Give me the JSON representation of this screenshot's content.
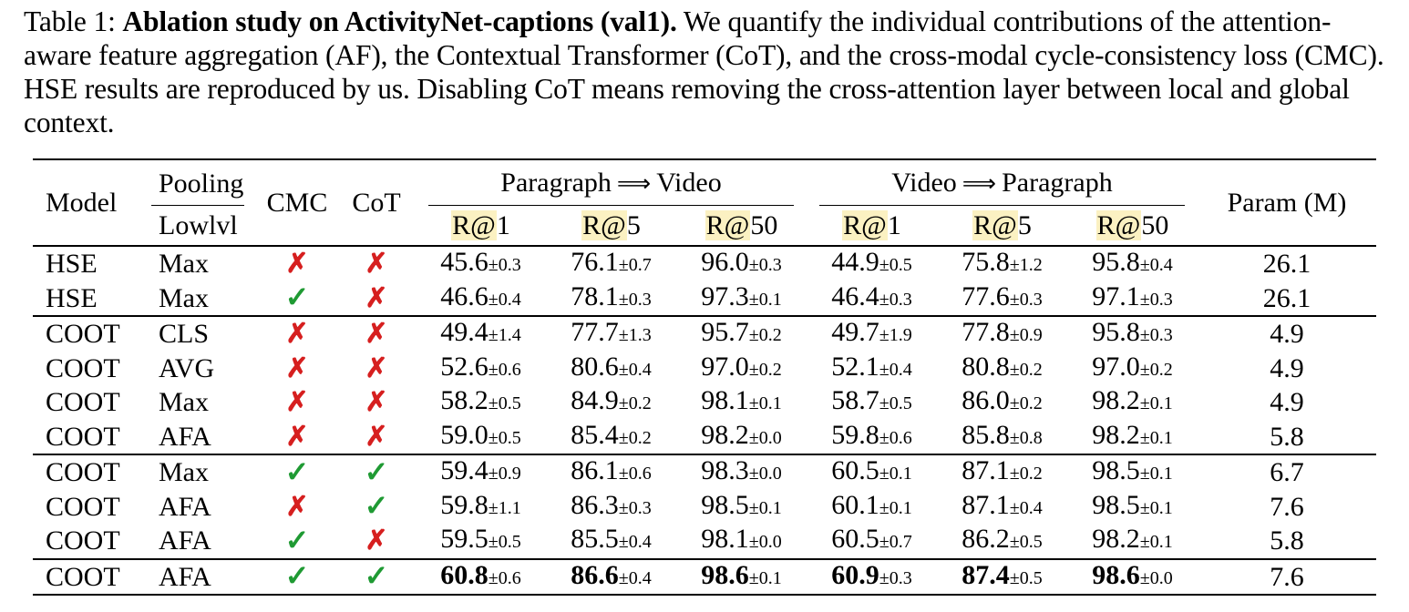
{
  "caption": {
    "label": "Table 1:",
    "title": "Ablation study on ActivityNet-captions (val1).",
    "text": "We quantify the individual contributions of the attention-aware feature aggregation (AF), the Contextual Transformer (CoT), and the cross-modal cycle-consistency loss (CMC). HSE results are reproduced by us. Disabling CoT means removing the cross-attention layer between local and global context."
  },
  "header": {
    "model": "Model",
    "pooling": "Pooling",
    "lowlvl": "Lowlvl",
    "cmc": "CMC",
    "cot": "CoT",
    "p2v_from": "Paragraph",
    "p2v_to": "Video",
    "v2p_from": "Video",
    "v2p_to": "Paragraph",
    "arrow": "⟹",
    "param": "Param (M)",
    "metrics": [
      {
        "prefix": "R@",
        "k": "1"
      },
      {
        "prefix": "R@",
        "k": "5"
      },
      {
        "prefix": "R@",
        "k": "50"
      },
      {
        "prefix": "R@",
        "k": "1"
      },
      {
        "prefix": "R@",
        "k": "5"
      },
      {
        "prefix": "R@",
        "k": "50"
      }
    ]
  },
  "marks": {
    "yes": "✓",
    "no": "✗"
  },
  "rows": [
    {
      "model": "HSE",
      "pooling": "Max",
      "cmc": false,
      "cot": false,
      "sep": false,
      "metrics": [
        {
          "v": "45.6",
          "s": "±0.3"
        },
        {
          "v": "76.1",
          "s": "±0.7"
        },
        {
          "v": "96.0",
          "s": "±0.3"
        },
        {
          "v": "44.9",
          "s": "±0.5"
        },
        {
          "v": "75.8",
          "s": "±1.2"
        },
        {
          "v": "95.8",
          "s": "±0.4"
        }
      ],
      "param": "26.1"
    },
    {
      "model": "HSE",
      "pooling": "Max",
      "cmc": true,
      "cot": false,
      "sep": false,
      "metrics": [
        {
          "v": "46.6",
          "s": "±0.4"
        },
        {
          "v": "78.1",
          "s": "±0.3"
        },
        {
          "v": "97.3",
          "s": "±0.1"
        },
        {
          "v": "46.4",
          "s": "±0.3"
        },
        {
          "v": "77.6",
          "s": "±0.3"
        },
        {
          "v": "97.1",
          "s": "±0.3"
        }
      ],
      "param": "26.1"
    },
    {
      "model": "COOT",
      "pooling": "CLS",
      "cmc": false,
      "cot": false,
      "sep": true,
      "metrics": [
        {
          "v": "49.4",
          "s": "±1.4"
        },
        {
          "v": "77.7",
          "s": "±1.3"
        },
        {
          "v": "95.7",
          "s": "±0.2"
        },
        {
          "v": "49.7",
          "s": "±1.9"
        },
        {
          "v": "77.8",
          "s": "±0.9"
        },
        {
          "v": "95.8",
          "s": "±0.3"
        }
      ],
      "param": "4.9"
    },
    {
      "model": "COOT",
      "pooling": "AVG",
      "cmc": false,
      "cot": false,
      "sep": false,
      "metrics": [
        {
          "v": "52.6",
          "s": "±0.6"
        },
        {
          "v": "80.6",
          "s": "±0.4"
        },
        {
          "v": "97.0",
          "s": "±0.2"
        },
        {
          "v": "52.1",
          "s": "±0.4"
        },
        {
          "v": "80.8",
          "s": "±0.2"
        },
        {
          "v": "97.0",
          "s": "±0.2"
        }
      ],
      "param": "4.9"
    },
    {
      "model": "COOT",
      "pooling": "Max",
      "cmc": false,
      "cot": false,
      "sep": false,
      "metrics": [
        {
          "v": "58.2",
          "s": "±0.5"
        },
        {
          "v": "84.9",
          "s": "±0.2"
        },
        {
          "v": "98.1",
          "s": "±0.1"
        },
        {
          "v": "58.7",
          "s": "±0.5"
        },
        {
          "v": "86.0",
          "s": "±0.2"
        },
        {
          "v": "98.2",
          "s": "±0.1"
        }
      ],
      "param": "4.9"
    },
    {
      "model": "COOT",
      "pooling": "AFA",
      "cmc": false,
      "cot": false,
      "sep": false,
      "metrics": [
        {
          "v": "59.0",
          "s": "±0.5"
        },
        {
          "v": "85.4",
          "s": "±0.2"
        },
        {
          "v": "98.2",
          "s": "±0.0"
        },
        {
          "v": "59.8",
          "s": "±0.6"
        },
        {
          "v": "85.8",
          "s": "±0.8"
        },
        {
          "v": "98.2",
          "s": "±0.1"
        }
      ],
      "param": "5.8"
    },
    {
      "model": "COOT",
      "pooling": "Max",
      "cmc": true,
      "cot": true,
      "sep": true,
      "metrics": [
        {
          "v": "59.4",
          "s": "±0.9"
        },
        {
          "v": "86.1",
          "s": "±0.6"
        },
        {
          "v": "98.3",
          "s": "±0.0"
        },
        {
          "v": "60.5",
          "s": "±0.1"
        },
        {
          "v": "87.1",
          "s": "±0.2"
        },
        {
          "v": "98.5",
          "s": "±0.1"
        }
      ],
      "param": "6.7"
    },
    {
      "model": "COOT",
      "pooling": "AFA",
      "cmc": false,
      "cot": true,
      "sep": false,
      "metrics": [
        {
          "v": "59.8",
          "s": "±1.1"
        },
        {
          "v": "86.3",
          "s": "±0.3"
        },
        {
          "v": "98.5",
          "s": "±0.1"
        },
        {
          "v": "60.1",
          "s": "±0.1"
        },
        {
          "v": "87.1",
          "s": "±0.4"
        },
        {
          "v": "98.5",
          "s": "±0.1"
        }
      ],
      "param": "7.6"
    },
    {
      "model": "COOT",
      "pooling": "AFA",
      "cmc": true,
      "cot": false,
      "sep": false,
      "metrics": [
        {
          "v": "59.5",
          "s": "±0.5"
        },
        {
          "v": "85.5",
          "s": "±0.4"
        },
        {
          "v": "98.1",
          "s": "±0.0"
        },
        {
          "v": "60.5",
          "s": "±0.7"
        },
        {
          "v": "86.2",
          "s": "±0.5"
        },
        {
          "v": "98.2",
          "s": "±0.1"
        }
      ],
      "param": "5.8"
    },
    {
      "model": "COOT",
      "pooling": "AFA",
      "cmc": true,
      "cot": true,
      "sep": true,
      "best": true,
      "metrics": [
        {
          "v": "60.8",
          "s": "±0.6"
        },
        {
          "v": "86.6",
          "s": "±0.4"
        },
        {
          "v": "98.6",
          "s": "±0.1"
        },
        {
          "v": "60.9",
          "s": "±0.3"
        },
        {
          "v": "87.4",
          "s": "±0.5"
        },
        {
          "v": "98.6",
          "s": "±0.0"
        }
      ],
      "param": "7.6"
    }
  ]
}
